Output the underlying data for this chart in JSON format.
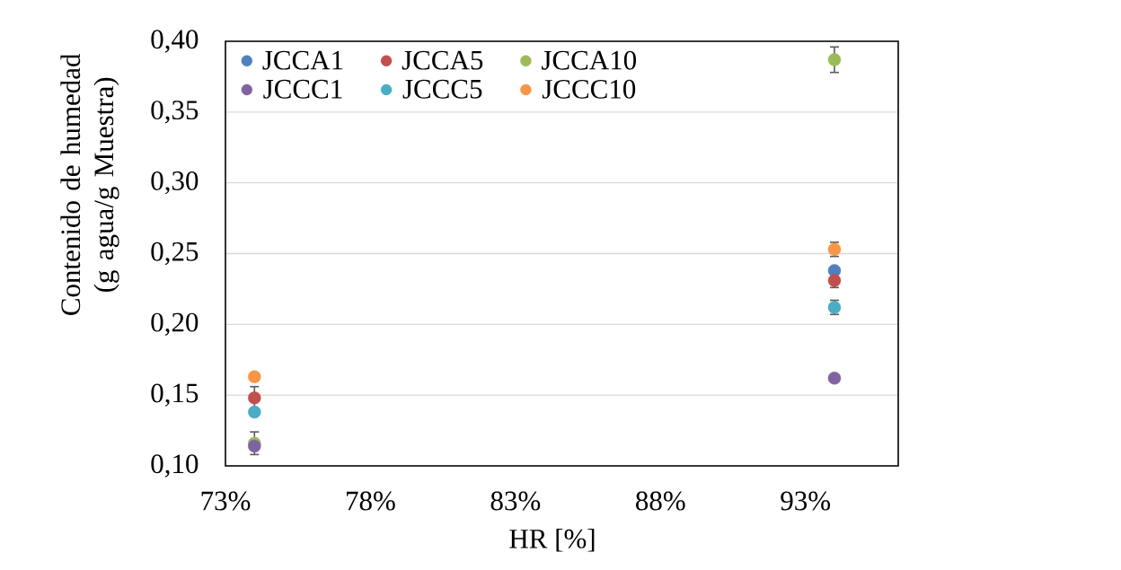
{
  "chart_data": {
    "type": "scatter",
    "xlabel": "HR [%]",
    "ylabel": "Contenido de humedad (g agua/g Muestra)",
    "x": [
      74,
      94
    ],
    "xlim": [
      73,
      96.2
    ],
    "xticks": [
      {
        "value": 73,
        "label": "73%"
      },
      {
        "value": 78,
        "label": "78%"
      },
      {
        "value": 83,
        "label": "83%"
      },
      {
        "value": 88,
        "label": "88%"
      },
      {
        "value": 93,
        "label": "93%"
      }
    ],
    "ylim": [
      0.1,
      0.4
    ],
    "yticks": [
      {
        "value": 0.1,
        "label": "0,10"
      },
      {
        "value": 0.15,
        "label": "0,15"
      },
      {
        "value": 0.2,
        "label": "0,20"
      },
      {
        "value": 0.25,
        "label": "0,25"
      },
      {
        "value": 0.3,
        "label": "0,30"
      },
      {
        "value": 0.35,
        "label": "0,35"
      },
      {
        "value": 0.4,
        "label": "0,40"
      }
    ],
    "grid": "y",
    "legend": "top left",
    "marker": "circle",
    "series": [
      {
        "name": "JCCA1",
        "color": "#4f81bd",
        "values": [
          null,
          0.238
        ]
      },
      {
        "name": "JCCA5",
        "color": "#c0504d",
        "values": [
          0.148,
          0.231
        ],
        "errors": [
          0.008,
          0.005
        ]
      },
      {
        "name": "JCCA10",
        "color": "#9bbb59",
        "values": [
          0.116,
          0.387
        ],
        "errors": [
          0.008,
          0.009
        ]
      },
      {
        "name": "JCCC1",
        "color": "#8064a2",
        "values": [
          0.114,
          0.162
        ]
      },
      {
        "name": "JCCC5",
        "color": "#4bacc6",
        "values": [
          0.138,
          0.212
        ],
        "errors": [
          null,
          0.005
        ]
      },
      {
        "name": "JCCC10",
        "color": "#f79646",
        "values": [
          0.163,
          0.253
        ],
        "errors": [
          null,
          0.005
        ]
      }
    ]
  }
}
